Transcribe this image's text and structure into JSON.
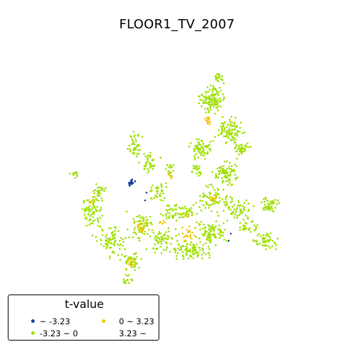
{
  "title": "FLOOR1_TV_2007",
  "legend": {
    "title": "t-value",
    "entries": [
      {
        "label": "~ -3.23",
        "color": "#1a3fa0"
      },
      {
        "label": "-3.23 ~ 0",
        "color": "#9ee000"
      },
      {
        "label": "0 ~ 3.23",
        "color": "#f5c400"
      },
      {
        "label": "3.23 ~",
        "color": "#d62a1a"
      }
    ]
  },
  "chart_data": {
    "type": "scatter",
    "title": "FLOOR1_TV_2007",
    "legend_title": "t-value",
    "legend_placement": "bottom-left",
    "grid": false,
    "axes_visible": false,
    "classes": [
      {
        "label": "~ -3.23",
        "color": "#1a3fa0",
        "shown_points": "few (cluster at west-center)"
      },
      {
        "label": "-3.23 ~ 0",
        "color": "#9ee000",
        "shown_points": "majority"
      },
      {
        "label": "0 ~ 3.23",
        "color": "#f5c400",
        "shown_points": "scattered clusters"
      },
      {
        "label": "3.23 ~",
        "color": "#d62a1a",
        "shown_points": "none visible"
      }
    ]
  }
}
